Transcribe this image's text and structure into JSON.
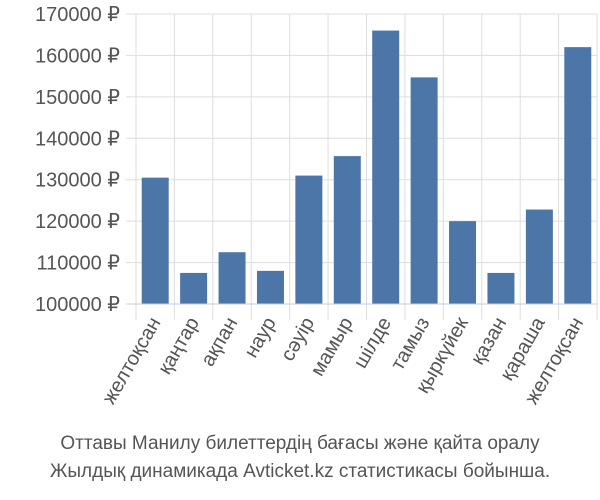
{
  "chart_data": {
    "type": "bar",
    "categories": [
      "желтоқсан",
      "қаңтар",
      "ақпан",
      "наур",
      "сәуір",
      "мамыр",
      "шілде",
      "тамыз",
      "қыркүйек",
      "қазан",
      "қараша",
      "желтоқсан"
    ],
    "values": [
      130500,
      107500,
      112500,
      108000,
      131000,
      135700,
      166000,
      154700,
      120000,
      107500,
      122800,
      162000
    ],
    "ylim": [
      100000,
      170000
    ],
    "yticks": [
      100000,
      110000,
      120000,
      130000,
      140000,
      150000,
      160000,
      170000
    ],
    "ytick_labels": [
      "100000 ₽",
      "110000 ₽",
      "120000 ₽",
      "130000 ₽",
      "140000 ₽",
      "150000 ₽",
      "160000 ₽",
      "170000 ₽"
    ],
    "bar_color": "#4d76a8",
    "grid": true
  },
  "caption": {
    "line1": "Оттавы Манилу билеттердің бағасы және қайта оралу",
    "line2": "Жылдық динамикада Avticket.kz статистикасы бойынша."
  }
}
